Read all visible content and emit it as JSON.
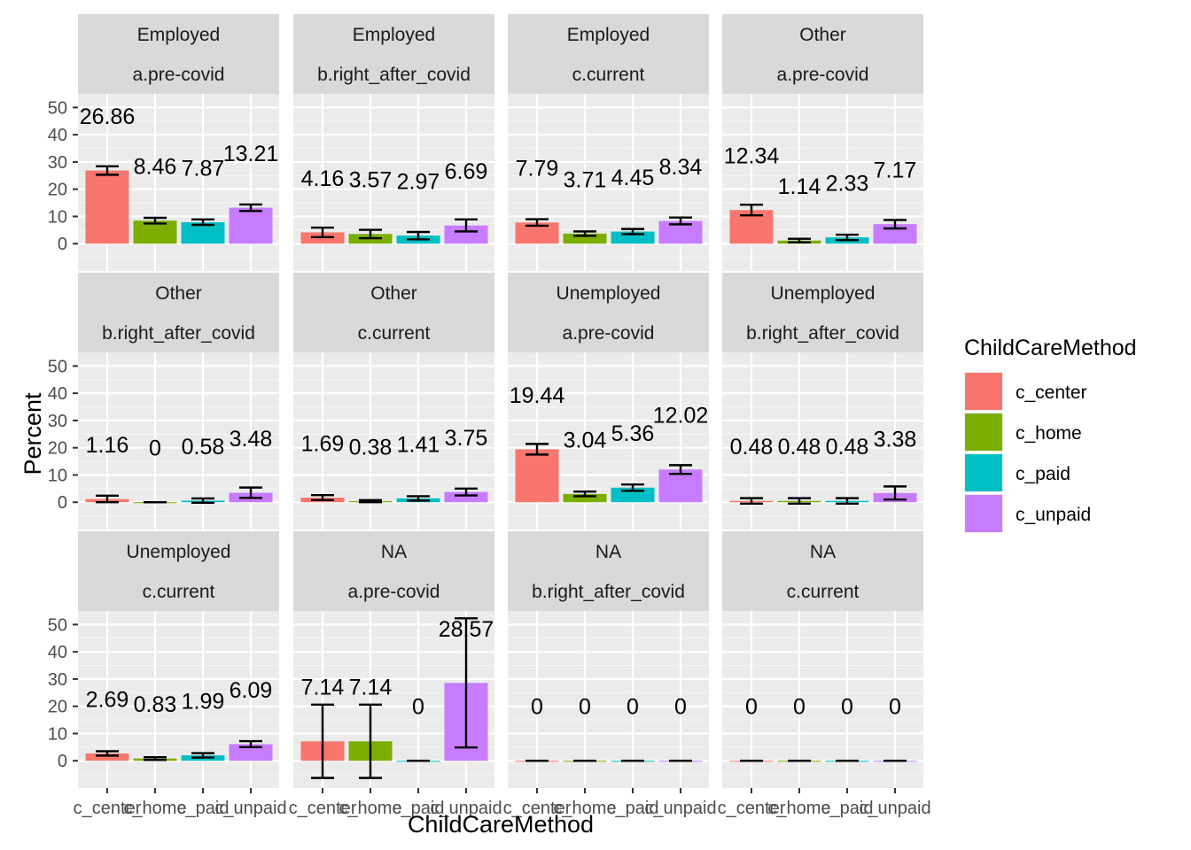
{
  "chart_data": {
    "type": "bar",
    "layout": "facet_wrap",
    "xlabel": "ChildCareMethod",
    "ylabel": "Percent",
    "ylim": [
      -10,
      55
    ],
    "yticks": [
      0,
      10,
      20,
      30,
      40,
      50
    ],
    "categories": [
      "c_center",
      "c_home",
      "c_paid",
      "c_unpaid"
    ],
    "tick_labels": [
      "c_center",
      "c_home",
      "c_paid",
      "c_unpaid"
    ],
    "grid": true,
    "legend": {
      "title": "ChildCareMethod",
      "position": "right",
      "entries": [
        {
          "label": "c_center",
          "color": "#F8766D"
        },
        {
          "label": "c_home",
          "color": "#7CAE00"
        },
        {
          "label": "c_paid",
          "color": "#00BFC4"
        },
        {
          "label": "c_unpaid",
          "color": "#C77CFF"
        }
      ]
    },
    "panels": [
      {
        "strip1": "Employed",
        "strip2": "a.pre-covid",
        "values": [
          26.86,
          8.46,
          7.87,
          13.21
        ],
        "labels": [
          "26.86",
          "8.46",
          "7.87",
          "13.21"
        ],
        "err_low": [
          25.3,
          7.4,
          6.9,
          12.0
        ],
        "err_high": [
          28.4,
          9.5,
          8.9,
          14.4
        ]
      },
      {
        "strip1": "Employed",
        "strip2": "b.right_after_covid",
        "values": [
          4.16,
          3.57,
          2.97,
          6.69
        ],
        "labels": [
          "4.16",
          "3.57",
          "2.97",
          "6.69"
        ],
        "err_low": [
          2.4,
          2.0,
          1.6,
          4.5
        ],
        "err_high": [
          5.9,
          5.1,
          4.3,
          8.9
        ]
      },
      {
        "strip1": "Employed",
        "strip2": "c.current",
        "values": [
          7.79,
          3.71,
          4.45,
          8.34
        ],
        "labels": [
          "7.79",
          "3.71",
          "4.45",
          "8.34"
        ],
        "err_low": [
          6.6,
          2.9,
          3.5,
          7.1
        ],
        "err_high": [
          9.0,
          4.5,
          5.4,
          9.6
        ]
      },
      {
        "strip1": "Other",
        "strip2": "a.pre-covid",
        "values": [
          12.34,
          1.14,
          2.33,
          7.17
        ],
        "labels": [
          "12.34",
          "1.14",
          "2.33",
          "7.17"
        ],
        "err_low": [
          10.4,
          0.5,
          1.3,
          5.6
        ],
        "err_high": [
          14.3,
          1.8,
          3.3,
          8.7
        ]
      },
      {
        "strip1": "Other",
        "strip2": "b.right_after_covid",
        "values": [
          1.16,
          0,
          0.58,
          3.48
        ],
        "labels": [
          "1.16",
          "0",
          "0.58",
          "3.48"
        ],
        "err_low": [
          0.0,
          0,
          -0.2,
          1.6
        ],
        "err_high": [
          2.4,
          0,
          1.4,
          5.4
        ]
      },
      {
        "strip1": "Other",
        "strip2": "c.current",
        "values": [
          1.69,
          0.38,
          1.41,
          3.75
        ],
        "labels": [
          "1.69",
          "0.38",
          "1.41",
          "3.75"
        ],
        "err_low": [
          0.8,
          0.0,
          0.6,
          2.5
        ],
        "err_high": [
          2.6,
          0.8,
          2.2,
          5.0
        ]
      },
      {
        "strip1": "Unemployed",
        "strip2": "a.pre-covid",
        "values": [
          19.44,
          3.04,
          5.36,
          12.02
        ],
        "labels": [
          "19.44",
          "3.04",
          "5.36",
          "12.02"
        ],
        "err_low": [
          17.5,
          2.2,
          4.2,
          10.4
        ],
        "err_high": [
          21.4,
          3.9,
          6.5,
          13.6
        ]
      },
      {
        "strip1": "Unemployed",
        "strip2": "b.right_after_covid",
        "values": [
          0.48,
          0.48,
          0.48,
          3.38
        ],
        "labels": [
          "0.48",
          "0.48",
          "0.48",
          "3.38"
        ],
        "err_low": [
          -0.5,
          -0.5,
          -0.5,
          1.0
        ],
        "err_high": [
          1.5,
          1.5,
          1.5,
          5.8
        ]
      },
      {
        "strip1": "Unemployed",
        "strip2": "c.current",
        "values": [
          2.69,
          0.83,
          1.99,
          6.09
        ],
        "labels": [
          "2.69",
          "0.83",
          "1.99",
          "6.09"
        ],
        "err_low": [
          1.9,
          0.3,
          1.2,
          5.0
        ],
        "err_high": [
          3.5,
          1.3,
          2.8,
          7.2
        ]
      },
      {
        "strip1": "NA",
        "strip2": "a.pre-covid",
        "values": [
          7.14,
          7.14,
          0,
          28.57
        ],
        "labels": [
          "7.14",
          "7.14",
          "0",
          "28.57"
        ],
        "err_low": [
          -6.3,
          -6.3,
          0,
          4.9
        ],
        "err_high": [
          20.6,
          20.6,
          0,
          52.3
        ]
      },
      {
        "strip1": "NA",
        "strip2": "b.right_after_covid",
        "values": [
          0,
          0,
          0,
          0
        ],
        "labels": [
          "0",
          "0",
          "0",
          "0"
        ],
        "err_low": [
          0,
          0,
          0,
          0
        ],
        "err_high": [
          0,
          0,
          0,
          0
        ]
      },
      {
        "strip1": "NA",
        "strip2": "c.current",
        "values": [
          0,
          0,
          0,
          0
        ],
        "labels": [
          "0",
          "0",
          "0",
          "0"
        ],
        "err_low": [
          0,
          0,
          0,
          0
        ],
        "err_high": [
          0,
          0,
          0,
          0
        ]
      }
    ]
  }
}
